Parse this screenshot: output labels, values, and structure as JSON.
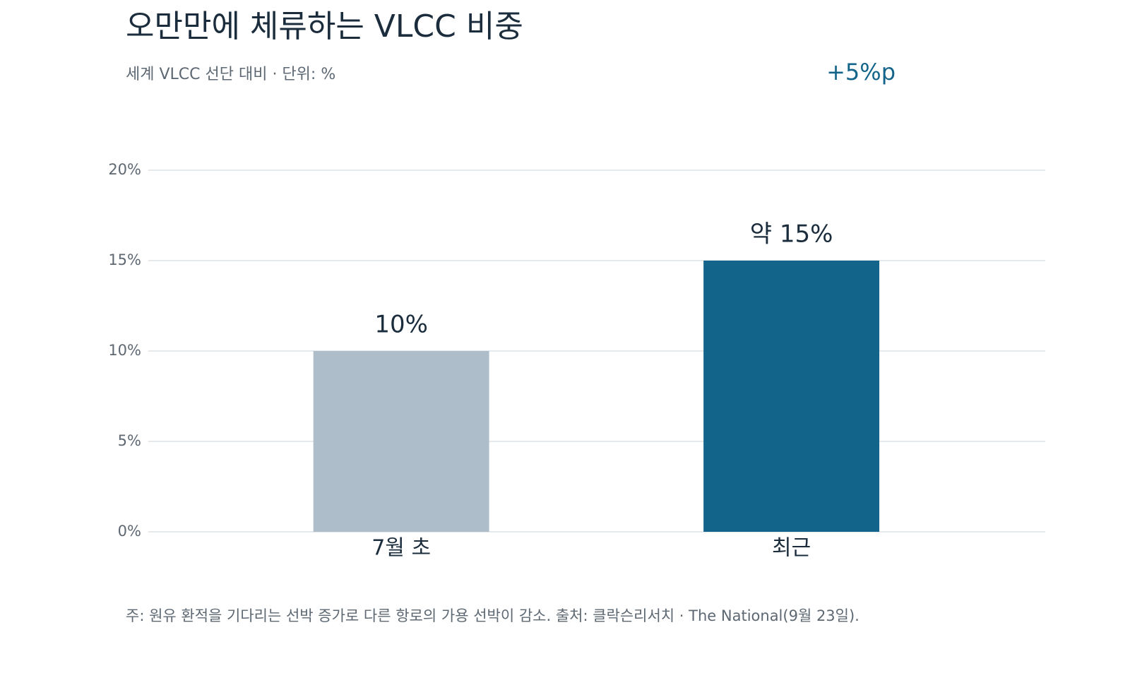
{
  "chart_data": {
    "type": "bar",
    "title": "오만만에 체류하는 VLCC 비중",
    "subtitle": "세계 VLCC 선단 대비 · 단위: %",
    "annotation": "+5%p",
    "note": "주: 원유 환적을 기다리는 선박 증가로 다른 항로의 가용 선박이 감소. 출처: 클락슨리서치 · The National(9월 23일).",
    "categories": [
      "7월 초",
      "최근"
    ],
    "values": [
      10,
      15
    ],
    "value_labels": [
      "10%",
      "약 15%"
    ],
    "colors": [
      "#adbdca",
      "#13648a"
    ],
    "ylim": [
      0,
      20
    ],
    "yticks": [
      {
        "value": 0,
        "label": "0%"
      },
      {
        "value": 5,
        "label": "5%"
      },
      {
        "value": 10,
        "label": "10%"
      },
      {
        "value": 15,
        "label": "15%"
      },
      {
        "value": 20,
        "label": "20%"
      }
    ],
    "grid": true
  }
}
